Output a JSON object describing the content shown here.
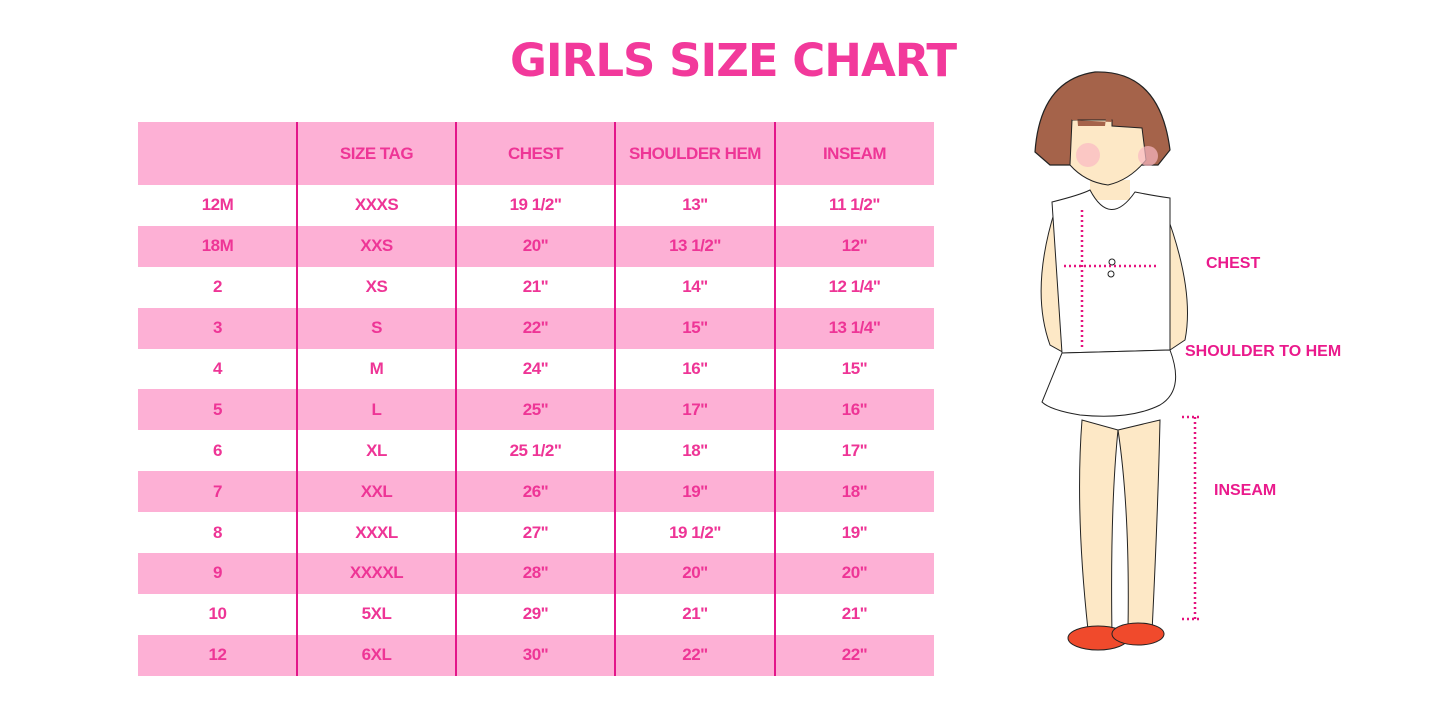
{
  "title": "GIRLS SIZE CHART",
  "table": {
    "headers": [
      "",
      "SIZE TAG",
      "CHEST",
      "SHOULDER HEM",
      "INSEAM"
    ],
    "rows": [
      [
        "12M",
        "XXXS",
        "19 1/2\"",
        "13\"",
        "11 1/2\""
      ],
      [
        "18M",
        "XXS",
        "20\"",
        "13 1/2\"",
        "12\""
      ],
      [
        "2",
        "XS",
        "21\"",
        "14\"",
        "12 1/4\""
      ],
      [
        "3",
        "S",
        "22\"",
        "15\"",
        "13 1/4\""
      ],
      [
        "4",
        "M",
        "24\"",
        "16\"",
        "15\""
      ],
      [
        "5",
        "L",
        "25\"",
        "17\"",
        "16\""
      ],
      [
        "6",
        "XL",
        "25 1/2\"",
        "18\"",
        "17\""
      ],
      [
        "7",
        "XXL",
        "26\"",
        "19\"",
        "18\""
      ],
      [
        "8",
        "XXXL",
        "27\"",
        "19 1/2\"",
        "19\""
      ],
      [
        "9",
        "XXXXL",
        "28\"",
        "20\"",
        "20\""
      ],
      [
        "10",
        "5XL",
        "29\"",
        "21\"",
        "21\""
      ],
      [
        "12",
        "6XL",
        "30\"",
        "22\"",
        "22\""
      ]
    ]
  },
  "illustration": {
    "labels": {
      "chest": "CHEST",
      "shoulder_to_hem": "SHOULDER TO HEM",
      "inseam": "INSEAM"
    }
  },
  "colors": {
    "accent": "#ee3596",
    "row_pink": "#fdb0d5",
    "divider": "#e3168a",
    "hair": "#a5634a",
    "skin": "#fde8c6",
    "shoes": "#f04a2c"
  }
}
